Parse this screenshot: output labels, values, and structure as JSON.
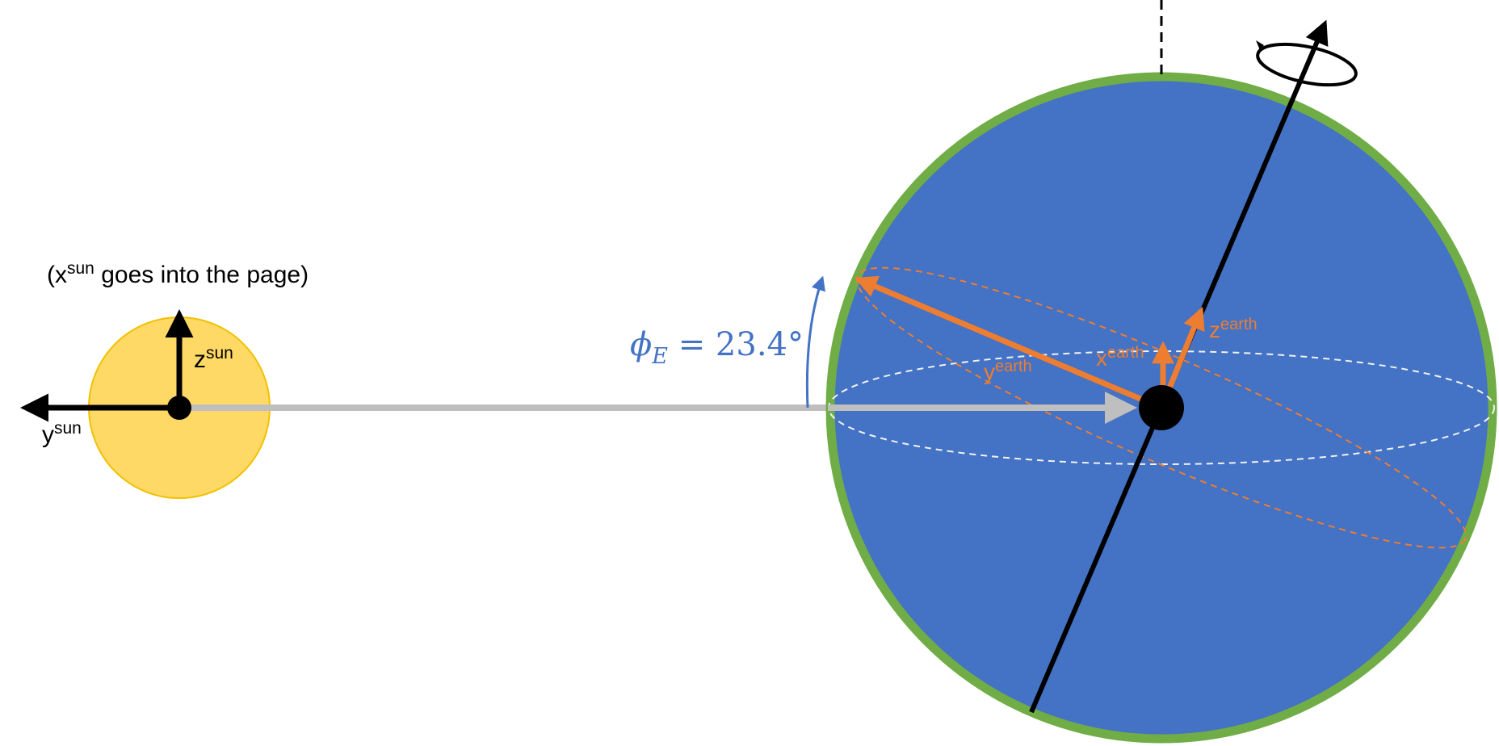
{
  "sun": {
    "note": {
      "prefix": "(x",
      "sup": "sun",
      "suffix": " goes into the page)"
    },
    "axis_z": {
      "base": "z",
      "sup": "sun"
    },
    "axis_y": {
      "base": "y",
      "sup": "sun"
    }
  },
  "earth": {
    "axis_x": {
      "base": "x",
      "sup": "earth"
    },
    "axis_y": {
      "base": "y",
      "sup": "earth"
    },
    "axis_z": {
      "base": "z",
      "sup": "earth"
    }
  },
  "tilt_label": {
    "symbol": "ϕ",
    "subscript": "E",
    "value": " = 23.4°"
  },
  "colors": {
    "sun_fill": "#FFD966",
    "sun_outline": "#F2C000",
    "earth_fill": "#4472C4",
    "earth_outline": "#70AD47",
    "earth_axes": "#ED7D31",
    "tilt_label": "#4472C4",
    "connector": "#BFBFBF",
    "axes_black": "#000000",
    "equator_dashed": "#F2F2F2"
  }
}
